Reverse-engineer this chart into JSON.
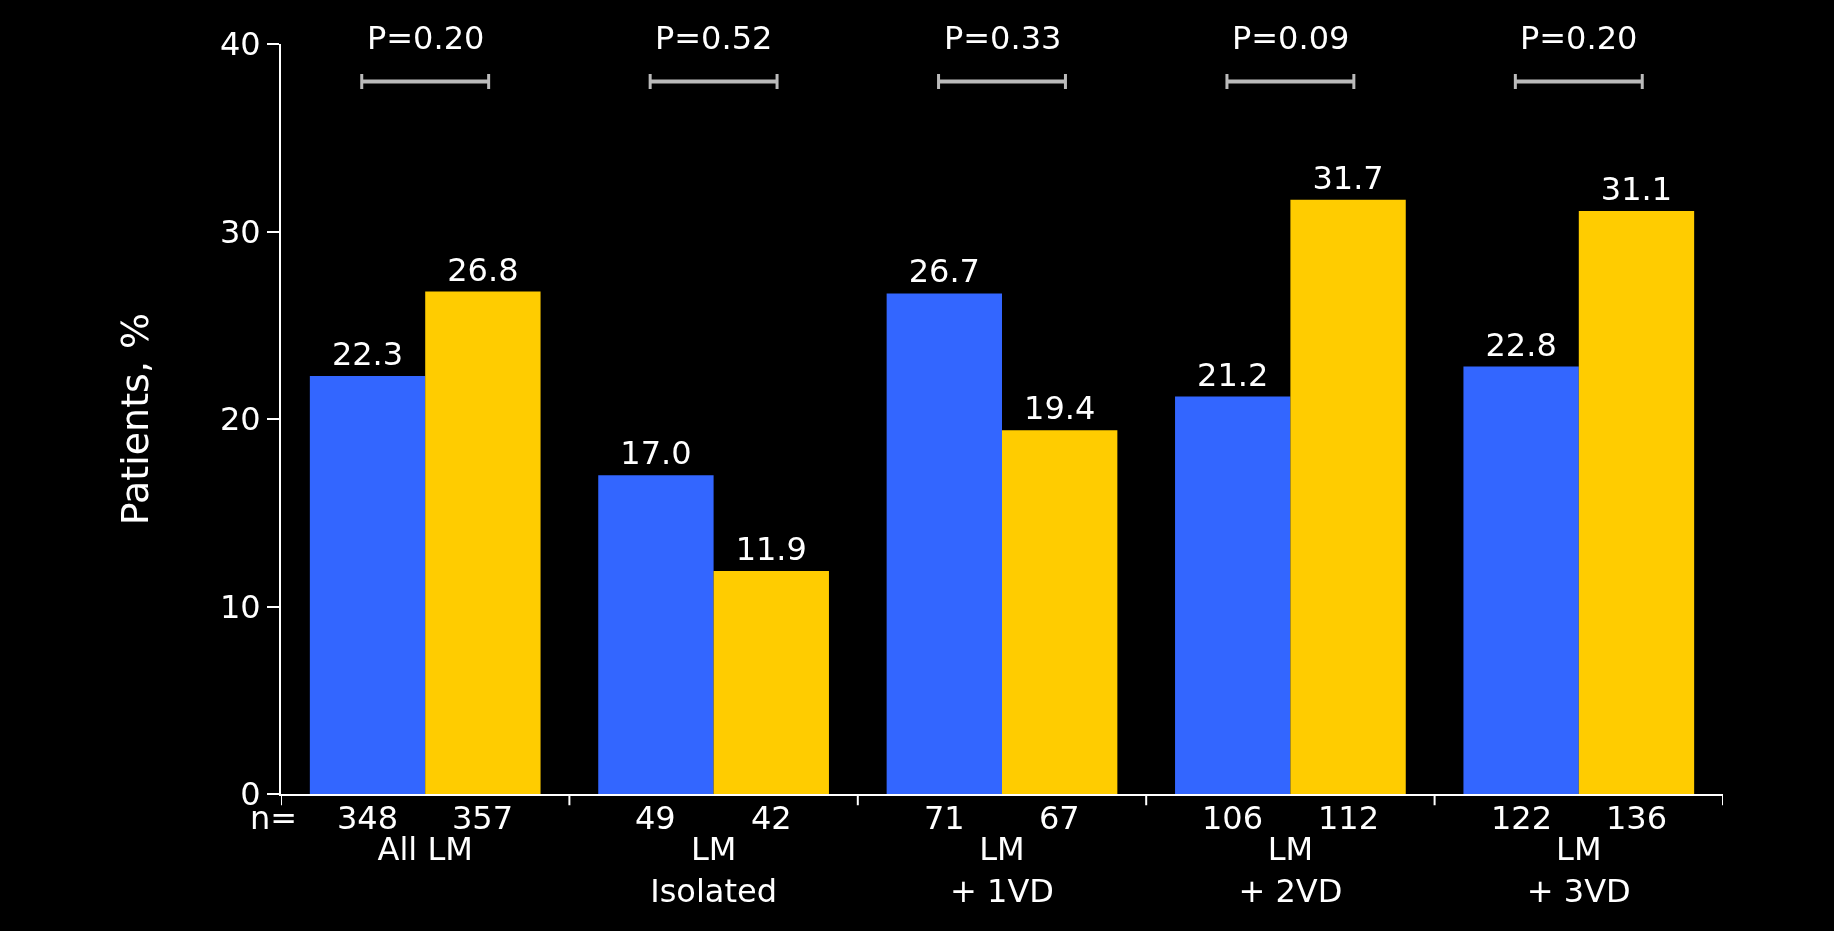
{
  "chart_data": {
    "type": "bar",
    "categories": [
      "All LM",
      "LM\nIsolated",
      "LM\n+ 1VD",
      "LM\n+ 2VD",
      "LM\n+ 3VD"
    ],
    "series": [
      {
        "color": "#3366ff",
        "values": [
          22.3,
          17.0,
          26.7,
          21.2,
          22.8
        ],
        "value_labels": [
          "22.3",
          "17.0",
          "26.7",
          "21.2",
          "22.8"
        ]
      },
      {
        "color": "#ffcc00",
        "values": [
          26.8,
          11.9,
          19.4,
          31.7,
          31.1
        ],
        "value_labels": [
          "26.8",
          "11.9",
          "19.4",
          "31.7",
          "31.1"
        ]
      }
    ],
    "ylabel": "Patients, %",
    "ylim": [
      0,
      40
    ],
    "yticks": [
      0,
      10,
      20,
      30,
      40
    ],
    "grid": false,
    "annotations": [
      "P=0.20",
      "P=0.52",
      "P=0.33",
      "P=0.09",
      "P=0.20",
      "n=",
      "348",
      "357",
      "49",
      "42",
      "71",
      "67",
      "106",
      "112",
      "122",
      "136"
    ]
  }
}
